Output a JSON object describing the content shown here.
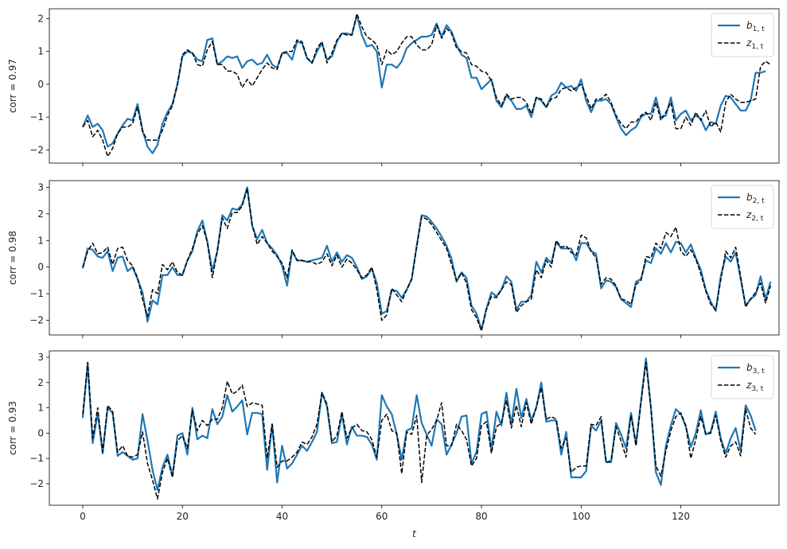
{
  "chart_data": [
    {
      "type": "line",
      "ylabel": "corr = 0.97",
      "xlabel": "",
      "xlim": [
        -6.7,
        139.7
      ],
      "ylim": [
        -2.4,
        2.3
      ],
      "xticks": [
        0,
        20,
        40,
        60,
        80,
        100,
        120
      ],
      "xtick_labels_visible": false,
      "yticks": [
        -2,
        -1,
        0,
        1,
        2
      ],
      "ytick_labels": [
        "−2",
        "−1",
        "0",
        "1",
        "2"
      ],
      "legend": {
        "position": "top-right",
        "entries": [
          {
            "label_main": "b",
            "label_sub": "1, t",
            "style": "solid",
            "color": "#1f77b4"
          },
          {
            "label_main": "z",
            "label_sub": "1, t",
            "style": "dashed",
            "color": "#000000"
          }
        ]
      },
      "series": [
        {
          "name": "b1",
          "color": "#1f77b4",
          "values": [
            -1.3,
            -0.95,
            -1.3,
            -1.2,
            -1.4,
            -1.9,
            -1.8,
            -1.5,
            -1.25,
            -1.05,
            -1.1,
            -0.6,
            -1.4,
            -1.9,
            -2.1,
            -1.85,
            -1.2,
            -0.85,
            -0.6,
            0.0,
            0.85,
            1.0,
            0.95,
            0.75,
            0.7,
            1.35,
            1.4,
            0.6,
            0.7,
            0.85,
            0.8,
            0.85,
            0.5,
            0.7,
            0.75,
            0.6,
            0.65,
            0.9,
            0.6,
            0.5,
            0.95,
            0.95,
            0.75,
            1.3,
            1.25,
            0.8,
            0.65,
            1.0,
            1.25,
            0.75,
            0.85,
            1.3,
            1.55,
            1.55,
            1.5,
            2.1,
            1.5,
            1.15,
            1.2,
            1.0,
            -0.1,
            0.6,
            0.6,
            0.5,
            0.7,
            1.1,
            1.25,
            1.35,
            1.45,
            1.45,
            1.5,
            1.85,
            1.45,
            1.8,
            1.6,
            1.2,
            0.9,
            0.8,
            0.2,
            0.2,
            -0.15,
            0.0,
            0.15,
            -0.5,
            -0.7,
            -0.35,
            -0.5,
            -0.75,
            -0.75,
            -0.65,
            -1.0,
            -0.4,
            -0.5,
            -0.7,
            -0.35,
            -0.25,
            0.05,
            -0.1,
            -0.05,
            -0.2,
            0.15,
            -0.5,
            -0.85,
            -0.5,
            -0.5,
            -0.45,
            -0.6,
            -1.0,
            -1.35,
            -1.55,
            -1.4,
            -1.3,
            -1.0,
            -0.9,
            -0.9,
            -0.4,
            -1.0,
            -0.95,
            -0.4,
            -1.1,
            -0.9,
            -0.8,
            -1.1,
            -0.95,
            -1.05,
            -1.4,
            -1.15,
            -1.2,
            -0.65,
            -0.35,
            -0.4,
            -0.6,
            -0.8,
            -0.8,
            -0.5,
            0.35,
            0.35,
            0.4
          ]
        },
        {
          "name": "z1",
          "color": "#000000",
          "values": [
            -1.3,
            -1.1,
            -1.6,
            -1.4,
            -1.7,
            -2.2,
            -1.95,
            -1.5,
            -1.3,
            -1.3,
            -1.2,
            -0.7,
            -1.45,
            -1.7,
            -1.7,
            -1.7,
            -1.4,
            -0.95,
            -0.65,
            0.0,
            0.9,
            1.05,
            0.95,
            0.6,
            0.55,
            1.05,
            1.3,
            0.6,
            0.6,
            0.4,
            0.4,
            0.3,
            -0.1,
            0.15,
            -0.05,
            0.2,
            0.45,
            0.65,
            0.5,
            0.45,
            0.95,
            1.0,
            1.0,
            1.35,
            1.3,
            0.8,
            0.65,
            1.1,
            1.3,
            0.65,
            0.95,
            1.35,
            1.55,
            1.5,
            1.5,
            2.15,
            1.75,
            1.45,
            1.35,
            1.2,
            0.6,
            1.05,
            0.9,
            1.0,
            1.25,
            1.45,
            1.45,
            1.2,
            1.05,
            1.05,
            1.2,
            1.8,
            1.4,
            1.7,
            1.55,
            1.1,
            1.0,
            0.95,
            0.6,
            0.55,
            0.4,
            0.35,
            0.1,
            -0.4,
            -0.65,
            -0.3,
            -0.45,
            -0.4,
            -0.4,
            -0.55,
            -0.9,
            -0.4,
            -0.45,
            -0.7,
            -0.45,
            -0.4,
            -0.15,
            -0.1,
            -0.2,
            -0.1,
            0.0,
            -0.35,
            -0.75,
            -0.45,
            -0.45,
            -0.3,
            -0.55,
            -0.95,
            -1.2,
            -1.35,
            -1.15,
            -1.15,
            -0.95,
            -0.85,
            -1.1,
            -0.55,
            -1.1,
            -0.85,
            -0.55,
            -1.35,
            -1.35,
            -1.0,
            -1.25,
            -0.85,
            -1.1,
            -0.8,
            -1.3,
            -1.15,
            -1.45,
            -0.55,
            -0.3,
            -0.45,
            -0.55,
            -0.55,
            -0.5,
            -0.45,
            0.55,
            0.7,
            0.6
          ]
        }
      ]
    },
    {
      "type": "line",
      "ylabel": "corr = 0.98",
      "xlabel": "",
      "xlim": [
        -6.7,
        139.7
      ],
      "ylim": [
        -2.55,
        3.25
      ],
      "xticks": [
        0,
        20,
        40,
        60,
        80,
        100,
        120
      ],
      "xtick_labels_visible": false,
      "yticks": [
        -2,
        -1,
        0,
        1,
        2,
        3
      ],
      "ytick_labels": [
        "−2",
        "−1",
        "0",
        "1",
        "2",
        "3"
      ],
      "legend": {
        "position": "top-right",
        "entries": [
          {
            "label_main": "b",
            "label_sub": "2, t",
            "style": "solid",
            "color": "#1f77b4"
          },
          {
            "label_main": "z",
            "label_sub": "2, t",
            "style": "dashed",
            "color": "#000000"
          }
        ]
      },
      "series": [
        {
          "name": "b2",
          "color": "#1f77b4",
          "values": [
            -0.05,
            0.7,
            0.65,
            0.4,
            0.35,
            0.6,
            -0.15,
            0.35,
            0.4,
            -0.15,
            0.0,
            -0.45,
            -0.95,
            -2.05,
            -1.25,
            -1.4,
            -0.3,
            -0.3,
            0.0,
            -0.3,
            -0.3,
            0.25,
            0.6,
            1.35,
            1.75,
            0.95,
            -0.15,
            0.6,
            1.95,
            1.75,
            2.2,
            2.15,
            2.35,
            3.0,
            1.55,
            1.05,
            1.4,
            0.9,
            0.7,
            0.45,
            0.05,
            -0.7,
            0.6,
            0.25,
            0.25,
            0.2,
            0.25,
            0.3,
            0.35,
            0.8,
            0.2,
            0.55,
            0.2,
            0.45,
            0.35,
            0.0,
            -0.45,
            -0.35,
            -0.05,
            -0.6,
            -1.75,
            -1.65,
            -0.85,
            -0.9,
            -1.15,
            -0.85,
            -0.45,
            0.8,
            1.95,
            1.9,
            1.7,
            1.45,
            1.15,
            0.8,
            0.3,
            -0.55,
            -0.2,
            -0.4,
            -1.45,
            -1.75,
            -2.35,
            -1.55,
            -0.95,
            -1.1,
            -0.85,
            -0.35,
            -0.55,
            -1.6,
            -1.3,
            -1.3,
            -1.05,
            0.2,
            -0.2,
            0.35,
            0.15,
            0.95,
            0.7,
            0.7,
            0.7,
            0.25,
            0.9,
            0.9,
            0.6,
            0.5,
            -0.8,
            -0.5,
            -0.55,
            -0.75,
            -1.2,
            -1.35,
            -1.5,
            -0.55,
            -0.45,
            0.25,
            0.15,
            0.7,
            0.5,
            0.9,
            0.55,
            0.95,
            0.9,
            0.55,
            0.85,
            0.35,
            -0.1,
            -0.85,
            -1.3,
            -1.65,
            -0.35,
            0.4,
            0.2,
            0.55,
            -0.45,
            -1.45,
            -1.2,
            -1.05,
            -0.35,
            -1.2,
            -0.55
          ]
        },
        {
          "name": "z2",
          "color": "#000000",
          "values": [
            0.0,
            0.6,
            0.9,
            0.5,
            0.55,
            0.75,
            0.1,
            0.7,
            0.75,
            0.25,
            0.05,
            -0.4,
            -1.2,
            -1.85,
            -0.85,
            -1.0,
            0.1,
            -0.1,
            0.2,
            -0.2,
            -0.3,
            0.25,
            0.7,
            1.25,
            1.55,
            0.95,
            -0.4,
            0.6,
            1.85,
            1.45,
            2.05,
            2.05,
            2.3,
            2.95,
            1.6,
            0.85,
            1.15,
            0.9,
            0.6,
            0.4,
            0.15,
            -0.4,
            0.65,
            0.25,
            0.25,
            0.2,
            0.2,
            0.1,
            0.2,
            0.5,
            0.05,
            0.45,
            0.0,
            0.3,
            0.15,
            -0.1,
            -0.4,
            -0.3,
            0.0,
            -0.85,
            -2.0,
            -1.8,
            -0.8,
            -1.05,
            -1.3,
            -0.85,
            -0.45,
            0.75,
            1.9,
            1.8,
            1.6,
            1.3,
            1.0,
            0.7,
            0.1,
            -0.5,
            -0.2,
            -0.6,
            -1.6,
            -1.9,
            -2.4,
            -1.6,
            -1.1,
            -1.15,
            -0.85,
            -0.55,
            -0.65,
            -1.7,
            -1.45,
            -1.3,
            -1.2,
            -0.1,
            -0.4,
            0.25,
            0.0,
            1.0,
            0.75,
            0.8,
            0.55,
            0.45,
            1.2,
            1.1,
            0.6,
            0.35,
            -0.65,
            -0.4,
            -0.45,
            -0.7,
            -1.2,
            -1.25,
            -1.4,
            -0.65,
            -0.5,
            0.4,
            0.35,
            0.9,
            0.7,
            1.3,
            1.15,
            1.5,
            0.6,
            0.4,
            0.65,
            0.3,
            -0.25,
            -0.9,
            -1.4,
            -1.6,
            -0.5,
            0.6,
            0.35,
            0.75,
            -0.35,
            -1.5,
            -1.2,
            -0.95,
            -0.6,
            -1.35,
            -0.7
          ]
        }
      ]
    },
    {
      "type": "line",
      "ylabel": "corr = 0.93",
      "xlabel": "t",
      "xlim": [
        -6.7,
        139.7
      ],
      "ylim": [
        -2.85,
        3.25
      ],
      "xticks": [
        0,
        20,
        40,
        60,
        80,
        100,
        120
      ],
      "xtick_labels": [
        "0",
        "20",
        "40",
        "60",
        "80",
        "100",
        "120"
      ],
      "xtick_labels_visible": true,
      "yticks": [
        -2,
        -1,
        0,
        1,
        2,
        3
      ],
      "ytick_labels": [
        "−2",
        "−1",
        "0",
        "1",
        "2",
        "3"
      ],
      "legend": {
        "position": "top-right",
        "entries": [
          {
            "label_main": "b",
            "label_sub": "3, t",
            "style": "solid",
            "color": "#1f77b4"
          },
          {
            "label_main": "z",
            "label_sub": "3, t",
            "style": "dashed",
            "color": "#000000"
          }
        ]
      },
      "series": [
        {
          "name": "b3",
          "color": "#1f77b4",
          "values": [
            0.6,
            2.75,
            -0.4,
            0.8,
            -0.8,
            1.0,
            0.8,
            -0.9,
            -0.75,
            -0.9,
            -1.05,
            -1.0,
            0.75,
            -0.3,
            -1.45,
            -2.25,
            -1.35,
            -0.85,
            -1.7,
            -0.1,
            0.0,
            -0.85,
            1.0,
            -0.25,
            -0.1,
            -0.2,
            0.95,
            0.35,
            0.65,
            1.5,
            0.85,
            1.05,
            1.3,
            -0.05,
            0.8,
            0.8,
            0.75,
            -1.45,
            0.35,
            -1.95,
            -0.5,
            -1.4,
            -1.2,
            -0.85,
            -0.5,
            -0.7,
            -0.35,
            0.05,
            1.6,
            1.05,
            -0.4,
            -0.35,
            0.75,
            -0.45,
            0.25,
            -0.1,
            -0.1,
            -0.15,
            -0.45,
            -1.05,
            1.5,
            1.05,
            0.75,
            -0.05,
            -1.05,
            0.1,
            0.2,
            1.5,
            0.4,
            -0.05,
            -0.5,
            0.55,
            0.35,
            -0.85,
            -0.45,
            0.0,
            0.65,
            0.7,
            -1.2,
            -0.75,
            0.75,
            0.85,
            -0.65,
            0.85,
            0.3,
            1.6,
            0.35,
            1.75,
            0.6,
            1.35,
            0.5,
            1.0,
            2.0,
            0.45,
            0.5,
            0.5,
            -0.85,
            0.05,
            -1.75,
            -1.75,
            -1.75,
            -1.5,
            0.3,
            0.1,
            0.5,
            -1.15,
            -1.15,
            0.4,
            -0.05,
            -0.6,
            0.8,
            -0.45,
            1.25,
            2.95,
            1.0,
            -1.55,
            -2.05,
            -0.5,
            0.3,
            0.95,
            0.75,
            0.25,
            -0.55,
            0.0,
            0.9,
            -0.05,
            0.05,
            0.85,
            -0.2,
            -0.8,
            -0.2,
            0.2,
            -0.7,
            1.1,
            0.7,
            0.1
          ]
        },
        {
          "name": "z3",
          "color": "#000000",
          "values": [
            0.75,
            2.8,
            -0.2,
            1.0,
            -0.75,
            1.1,
            0.85,
            -0.75,
            -0.5,
            -0.9,
            -0.95,
            -0.85,
            0.05,
            -1.2,
            -1.85,
            -2.6,
            -1.55,
            -1.0,
            -1.75,
            -0.3,
            -0.1,
            -0.6,
            0.9,
            0.1,
            0.5,
            0.3,
            0.55,
            0.55,
            1.0,
            2.05,
            1.55,
            1.65,
            1.9,
            1.05,
            1.2,
            1.15,
            1.1,
            -1.0,
            0.35,
            -1.35,
            -1.1,
            -1.1,
            -0.95,
            -0.75,
            -0.35,
            -0.45,
            -0.15,
            0.35,
            1.6,
            1.15,
            -0.35,
            -0.1,
            0.85,
            -0.2,
            0.2,
            0.35,
            0.1,
            0.05,
            -0.25,
            -0.95,
            0.5,
            0.75,
            0.1,
            0.0,
            -1.6,
            0.05,
            -0.05,
            0.7,
            -1.95,
            -0.1,
            0.15,
            0.5,
            1.2,
            -0.5,
            -0.5,
            0.35,
            0.1,
            -0.25,
            -1.3,
            -1.0,
            0.3,
            0.45,
            -0.8,
            0.25,
            0.4,
            1.3,
            0.2,
            1.1,
            0.25,
            1.2,
            0.35,
            1.05,
            1.8,
            0.55,
            0.65,
            0.55,
            -0.6,
            -0.2,
            -1.55,
            -1.35,
            -1.3,
            -1.3,
            0.35,
            0.3,
            0.65,
            -1.15,
            -1.1,
            0.25,
            -0.3,
            -0.95,
            0.7,
            -0.5,
            1.2,
            2.8,
            1.0,
            -1.3,
            -1.7,
            -0.7,
            0.1,
            0.65,
            0.8,
            0.3,
            -1.0,
            -0.25,
            0.65,
            -0.05,
            0.0,
            0.7,
            -0.3,
            -0.95,
            -0.5,
            -0.35,
            -0.9,
            0.95,
            0.2,
            -0.05
          ]
        }
      ]
    }
  ]
}
